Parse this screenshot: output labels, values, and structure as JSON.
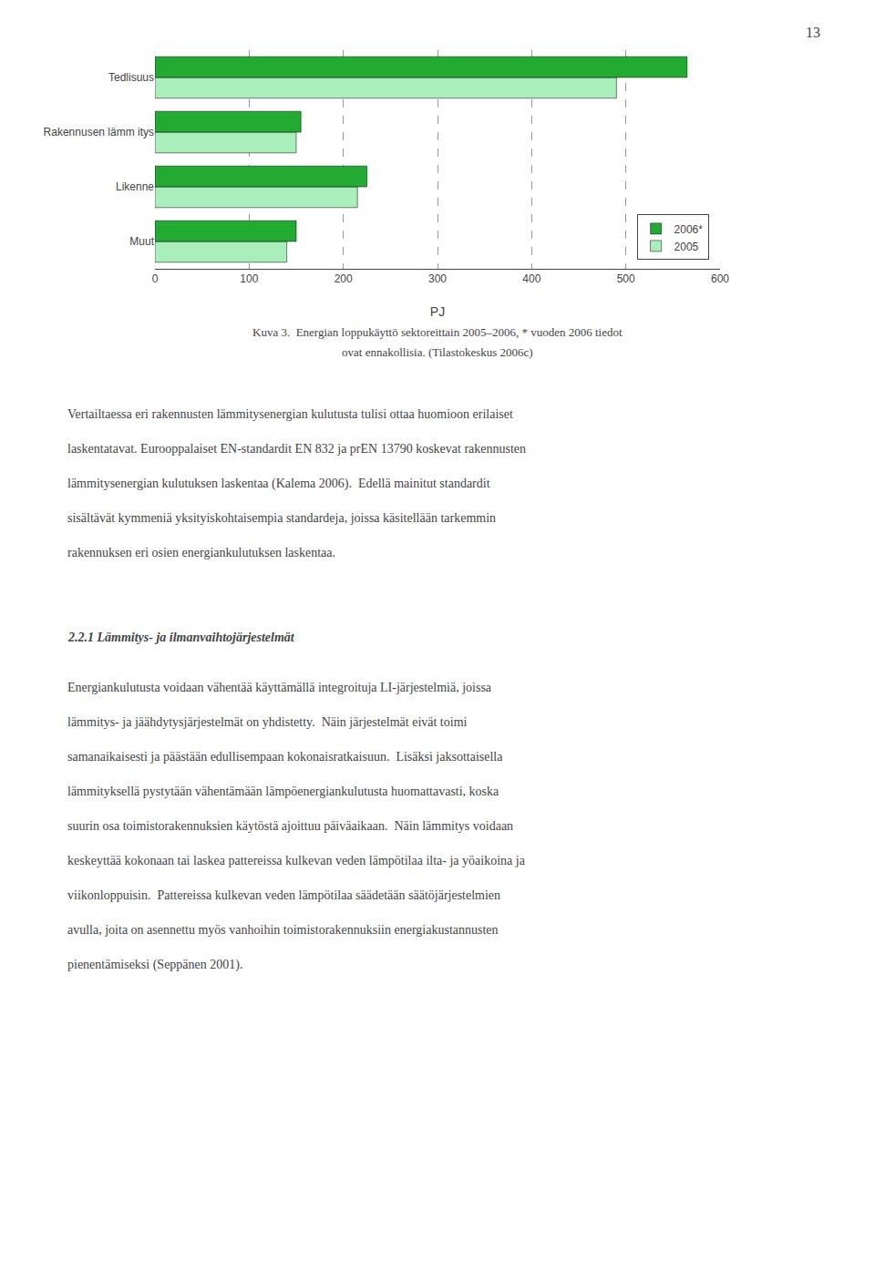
{
  "chart_data": {
    "type": "bar",
    "orientation": "horizontal",
    "categories": [
      "Muut",
      "Likenne",
      "Rakennusen lämm itys",
      "Tedlisuus"
    ],
    "series": [
      {
        "name": "2006*",
        "color": "#22aa33",
        "values": [
          150,
          225,
          155,
          565
        ]
      },
      {
        "name": "2005",
        "color": "#aaeebb",
        "values": [
          140,
          215,
          150,
          490
        ]
      }
    ],
    "xlabel": "PJ",
    "xlim": [
      0,
      600
    ],
    "xticks": [
      0,
      100,
      200,
      300,
      400,
      500,
      600
    ],
    "grid": true,
    "legend": "lower right",
    "annotations": [
      "13",
      "Kuva 3.  Energian loppukäyttö sektoreittain 2005–2006, * vuoden 2006 tiedot",
      "ovat ennakollisia. (Tilastokeskus 2006c)",
      "Vertailtaessa eri rakennusten lämmitysenergian kulutusta tulisi ottaa huomioon erilaiset",
      "laskentatavat. Eurooppalaiset EN-standardit EN 832 ja prEN 13790 koskevat rakennusten",
      "lämmitysenergian kulutuksen laskentaa (Kalema 2006).  Edellä mainitut standardit",
      "sisältävät kymmeniä yksityiskohtaisempia standardeja, joissa käsitellään tarkemmin",
      "rakennuksen eri osien energiankulutuksen laskentaa.",
      "2.2.1 Lämmitys- ja ilmanvaihtojärjestelmät",
      "Energiankulutusta voidaan vähentää käyttämällä integroituja LI-järjestelmiä, joissa",
      "lämmitys- ja jäähdytysjärjestelmät on yhdistetty.  Näin järjestelmät eivät toimi",
      "samanaikaisesti ja päästään edullisempaan kokonaisratkaisuun.  Lisäksi jaksottaisella",
      "lämmityksellä pystytään vähentämään lämpöenergiankulutusta huomattavasti, koska",
      "suurin osa toimistorakennuksien käytöstä ajoittuu päiväaikaan.  Näin lämmitys voidaan",
      "keskeyttää kokonaan tai laskea pattereissa kulkevan veden lämpötilaa ilta- ja yöaikoina ja",
      "viikonloppuisin.  Pattereissa kulkevan veden lämpötilaa säädetään säätöjärjestelmien",
      "avulla, joita on asennettu myös vanhoihin toimistorakennuksiin energiakustannusten",
      "pienentämiseksi (Seppänen 2001)."
    ]
  }
}
